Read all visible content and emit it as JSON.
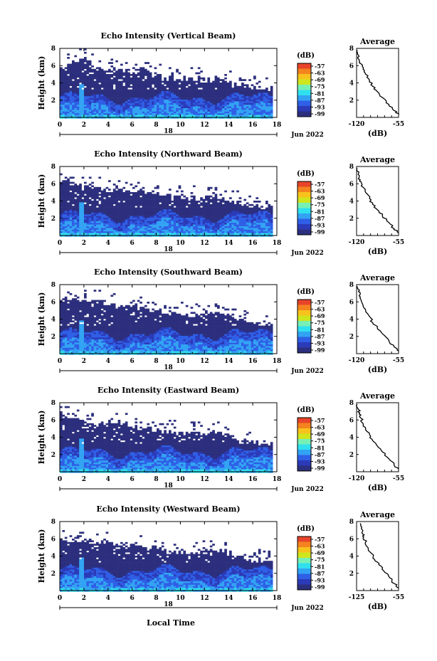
{
  "figure": {
    "date_label": "Jun 2022",
    "day_label": "18",
    "bottom_xlabel": "Local Time",
    "side_title": "Average",
    "side_xlabel": "(dB)",
    "colorbar_title": "(dB)",
    "ylabel": "Height (km)"
  },
  "colorbar": {
    "ticks": [
      "-57",
      "-63",
      "-69",
      "-75",
      "-81",
      "-87",
      "-93",
      "-99"
    ],
    "colors": [
      "#e8442a",
      "#f4831f",
      "#f7c21c",
      "#cfe51e",
      "#77f0b6",
      "#2fe1ef",
      "#32a3f3",
      "#2f5fe6",
      "#2b3bb8",
      "#2c2f7d"
    ]
  },
  "chart_data": [
    {
      "type": "heatmap",
      "title": "Echo Intensity (Vertical Beam)",
      "xlabel": "",
      "ylabel": "Height (km)",
      "xlim": [
        0,
        18
      ],
      "ylim": [
        0,
        8
      ],
      "xticks": [
        "0",
        "2",
        "4",
        "6",
        "8",
        "10",
        "12",
        "14",
        "16",
        "18"
      ],
      "yticks": [
        "2",
        "4",
        "6",
        "8"
      ],
      "top_km": [
        5.6,
        6.2,
        7.0,
        5.8,
        5.5,
        5.7,
        4.9,
        5.7,
        5.0,
        4.5,
        4.6,
        4.4,
        4.4,
        4.5,
        4.2,
        3.8,
        3.4,
        3.4
      ],
      "profile": {
        "xlim": [
          -120,
          -55
        ],
        "ylim": [
          0,
          8
        ],
        "xticks": [
          "-120",
          "-55"
        ],
        "yticks": [
          "2",
          "4",
          "6",
          "8"
        ],
        "x": [
          -55,
          -62,
          -70,
          -80,
          -88,
          -95,
          -100,
          -106,
          -110,
          -113,
          -116,
          -117,
          -119
        ],
        "y": [
          0.3,
          0.8,
          1.5,
          2.3,
          3.0,
          3.6,
          4.3,
          5.0,
          5.6,
          6.2,
          6.7,
          7.2,
          7.8
        ]
      }
    },
    {
      "type": "heatmap",
      "title": "Echo Intensity (Northward Beam)",
      "xlabel": "",
      "ylabel": "Height (km)",
      "xlim": [
        0,
        18
      ],
      "ylim": [
        0,
        8
      ],
      "xticks": [
        "0",
        "2",
        "4",
        "6",
        "8",
        "10",
        "12",
        "14",
        "16",
        "18"
      ],
      "yticks": [
        "2",
        "4",
        "6",
        "8"
      ],
      "top_km": [
        6.4,
        6.1,
        5.8,
        5.5,
        5.2,
        5.4,
        5.0,
        5.3,
        4.8,
        4.5,
        4.4,
        4.3,
        4.4,
        4.6,
        4.1,
        3.7,
        3.3,
        3.2
      ],
      "profile": {
        "xlim": [
          -120,
          -55
        ],
        "ylim": [
          0,
          8
        ],
        "xticks": [
          "-120",
          "-55"
        ],
        "yticks": [
          "2",
          "4",
          "6",
          "8"
        ],
        "x": [
          -55,
          -62,
          -70,
          -80,
          -88,
          -95,
          -100,
          -106,
          -110,
          -113,
          -116,
          -117,
          -119
        ],
        "y": [
          0.3,
          0.8,
          1.5,
          2.3,
          3.0,
          3.6,
          4.3,
          5.0,
          5.6,
          6.2,
          6.7,
          7.2,
          7.8
        ]
      }
    },
    {
      "type": "heatmap",
      "title": "Echo Intensity (Southward Beam)",
      "xlabel": "",
      "ylabel": "Height (km)",
      "xlim": [
        0,
        18
      ],
      "ylim": [
        0,
        8
      ],
      "xticks": [
        "0",
        "2",
        "4",
        "6",
        "8",
        "10",
        "12",
        "14",
        "16",
        "18"
      ],
      "yticks": [
        "2",
        "4",
        "6",
        "8"
      ],
      "top_km": [
        6.2,
        6.4,
        5.9,
        6.1,
        5.8,
        5.3,
        5.6,
        5.1,
        5.0,
        4.7,
        4.6,
        4.4,
        4.6,
        4.9,
        4.3,
        3.9,
        3.5,
        3.4
      ],
      "profile": {
        "xlim": [
          -120,
          -55
        ],
        "ylim": [
          0,
          8
        ],
        "xticks": [
          "-120",
          "-55"
        ],
        "yticks": [
          "2",
          "4",
          "6",
          "8"
        ],
        "x": [
          -55,
          -62,
          -70,
          -80,
          -88,
          -95,
          -100,
          -106,
          -110,
          -113,
          -116,
          -117,
          -119
        ],
        "y": [
          0.3,
          0.8,
          1.5,
          2.3,
          3.0,
          3.6,
          4.3,
          5.0,
          5.6,
          6.2,
          6.7,
          7.2,
          7.8
        ]
      }
    },
    {
      "type": "heatmap",
      "title": "Echo Intensity (Eastward Beam)",
      "xlabel": "",
      "ylabel": "Height (km)",
      "xlim": [
        0,
        18
      ],
      "ylim": [
        0,
        8
      ],
      "xticks": [
        "0",
        "2",
        "4",
        "6",
        "8",
        "10",
        "12",
        "14",
        "16",
        "18"
      ],
      "yticks": [
        "2",
        "4",
        "6",
        "8"
      ],
      "top_km": [
        6.5,
        6.0,
        5.8,
        5.4,
        5.5,
        6.0,
        5.2,
        5.0,
        4.8,
        4.6,
        4.5,
        4.4,
        4.5,
        4.6,
        4.2,
        3.8,
        3.4,
        3.3
      ],
      "profile": {
        "xlim": [
          -120,
          -55
        ],
        "ylim": [
          0,
          8
        ],
        "xticks": [
          "-120",
          "-55"
        ],
        "yticks": [
          "2",
          "4",
          "6",
          "8"
        ],
        "x": [
          -55,
          -62,
          -70,
          -80,
          -88,
          -95,
          -100,
          -106,
          -110,
          -113,
          -116,
          -117,
          -119
        ],
        "y": [
          0.3,
          0.8,
          1.5,
          2.3,
          3.0,
          3.6,
          4.3,
          5.0,
          5.6,
          6.2,
          6.7,
          7.2,
          7.8
        ]
      }
    },
    {
      "type": "heatmap",
      "title": "Echo Intensity (Westward Beam)",
      "xlabel": "Local Time",
      "ylabel": "Height (km)",
      "xlim": [
        0,
        18
      ],
      "ylim": [
        0,
        8
      ],
      "xticks": [
        "0",
        "2",
        "4",
        "6",
        "8",
        "10",
        "12",
        "14",
        "16",
        "18"
      ],
      "yticks": [
        "2",
        "4",
        "6",
        "8"
      ],
      "top_km": [
        6.0,
        5.6,
        5.8,
        5.4,
        5.6,
        5.2,
        5.4,
        5.0,
        4.9,
        4.6,
        4.5,
        4.4,
        4.5,
        4.7,
        4.2,
        3.8,
        3.3,
        3.2
      ],
      "profile": {
        "xlim": [
          -125,
          -55
        ],
        "ylim": [
          0,
          8
        ],
        "xticks": [
          "-125",
          "-55"
        ],
        "yticks": [
          "2",
          "4",
          "6",
          "8"
        ],
        "x": [
          -55,
          -62,
          -70,
          -80,
          -88,
          -95,
          -100,
          -106,
          -110,
          -113,
          -116,
          -117,
          -119
        ],
        "y": [
          0.3,
          0.8,
          1.5,
          2.3,
          3.0,
          3.6,
          4.3,
          5.0,
          5.6,
          6.2,
          6.7,
          7.2,
          7.8
        ]
      }
    }
  ]
}
